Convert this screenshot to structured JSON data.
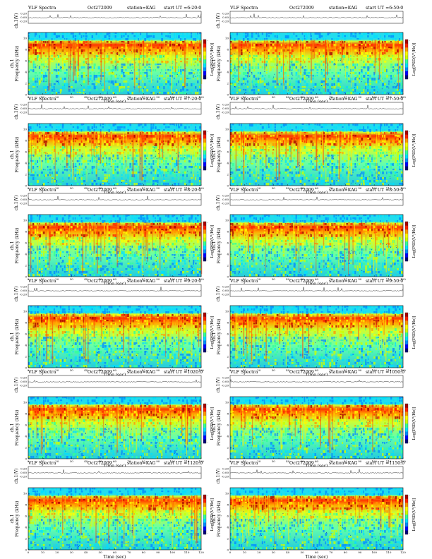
{
  "chart_data": {
    "type": "heatmap",
    "header": {
      "title": "VLF Spectra",
      "date": "Oct272009",
      "station": "station=KAG",
      "start_prefix": "start  UT ="
    },
    "panels": [
      {
        "start_ut": "6:20:0"
      },
      {
        "start_ut": "6:50:0"
      },
      {
        "start_ut": "7:20:0"
      },
      {
        "start_ut": "7:50:0"
      },
      {
        "start_ut": "8:20:0"
      },
      {
        "start_ut": "8:50:0"
      },
      {
        "start_ut": "9:20:0"
      },
      {
        "start_ut": "9:50:0"
      },
      {
        "start_ut": "1020:0"
      },
      {
        "start_ut": "1050:0"
      },
      {
        "start_ut": "1120:0"
      },
      {
        "start_ut": "1150:0"
      }
    ],
    "waveform": {
      "ylabel": "ch.1(V)",
      "yticks": [
        "0.20",
        "0.00",
        "-0.20"
      ]
    },
    "spectrogram": {
      "ylabel_channel": "ch.1",
      "ylabel": "Frequency  (kHz)",
      "yticks": [
        "0",
        "2",
        "4",
        "6",
        "8",
        "10"
      ],
      "ylim": [
        0,
        11
      ],
      "xlabel": "Time  (sec)",
      "xticks": [
        "0",
        "10",
        "20",
        "30",
        "40",
        "50",
        "60",
        "70",
        "80",
        "90",
        "100",
        "110",
        "120"
      ],
      "xlim": [
        0,
        120
      ]
    },
    "colorbar": {
      "label": "Log[PSD(V²/Hz)]",
      "ticks": [
        "-",
        "-"
      ],
      "colors": [
        "#00007a",
        "#0000ff",
        "#008cff",
        "#00e0ff",
        "#33ff99",
        "#ccff00",
        "#ffff00",
        "#ff9900",
        "#ff2200",
        "#aa0000"
      ]
    }
  }
}
